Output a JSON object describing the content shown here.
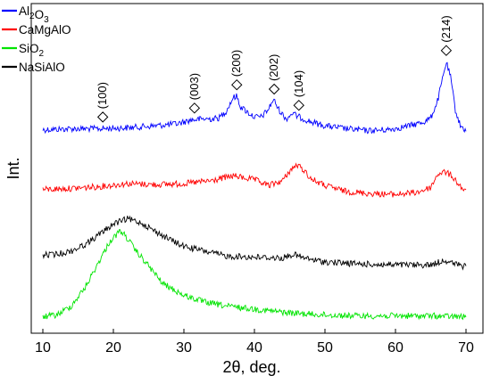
{
  "chart_data": {
    "type": "line",
    "xlabel": "2θ, deg.",
    "ylabel": "Int.",
    "xlim": [
      10,
      70
    ],
    "xticks": [
      10,
      20,
      30,
      40,
      50,
      60,
      70
    ],
    "grid": false,
    "legend_position": "top-left",
    "series": [
      {
        "name": "Al2O3",
        "name_parts": [
          {
            "t": "Al",
            "sub": false
          },
          {
            "t": "2",
            "sub": true
          },
          {
            "t": "O",
            "sub": false
          },
          {
            "t": "3",
            "sub": true
          }
        ],
        "color": "#0000ff",
        "points": [
          [
            10,
            0.16
          ],
          [
            14,
            0.15
          ],
          [
            18,
            0.15
          ],
          [
            22,
            0.14
          ],
          [
            26,
            0.12
          ],
          [
            29,
            0.1
          ],
          [
            31,
            0.06
          ],
          [
            33,
            0.05
          ],
          [
            34,
            0.05
          ],
          [
            35,
            0.04
          ],
          [
            36,
            -0.03
          ],
          [
            37,
            -0.17
          ],
          [
            37.5,
            -0.18
          ],
          [
            38,
            -0.08
          ],
          [
            39,
            -0.02
          ],
          [
            40,
            0.03
          ],
          [
            41,
            0.03
          ],
          [
            42,
            -0.05
          ],
          [
            42.7,
            -0.15
          ],
          [
            43.5,
            -0.04
          ],
          [
            44.5,
            0.05
          ],
          [
            45.4,
            -0.01
          ],
          [
            46,
            0.02
          ],
          [
            47,
            0.05
          ],
          [
            48,
            0.08
          ],
          [
            50,
            0.12
          ],
          [
            53,
            0.15
          ],
          [
            56,
            0.17
          ],
          [
            59,
            0.16
          ],
          [
            62,
            0.12
          ],
          [
            64,
            0.08
          ],
          [
            65,
            0.04
          ],
          [
            66,
            -0.14
          ],
          [
            67.2,
            -0.53
          ],
          [
            67.8,
            -0.38
          ],
          [
            68.5,
            -0.04
          ],
          [
            69.2,
            0.12
          ],
          [
            70,
            0.17
          ]
        ]
      },
      {
        "name": "CaMgAlO",
        "name_parts": [
          {
            "t": "CaMgAlO",
            "sub": false
          }
        ],
        "color": "#ff0000",
        "points": [
          [
            10,
            0.77
          ],
          [
            14,
            0.76
          ],
          [
            18,
            0.74
          ],
          [
            22,
            0.71
          ],
          [
            26,
            0.72
          ],
          [
            30,
            0.71
          ],
          [
            34,
            0.68
          ],
          [
            37,
            0.63
          ],
          [
            40,
            0.67
          ],
          [
            42,
            0.73
          ],
          [
            44,
            0.68
          ],
          [
            45,
            0.58
          ],
          [
            46,
            0.52
          ],
          [
            47,
            0.57
          ],
          [
            48,
            0.66
          ],
          [
            50,
            0.73
          ],
          [
            53,
            0.79
          ],
          [
            56,
            0.81
          ],
          [
            60,
            0.82
          ],
          [
            63,
            0.8
          ],
          [
            65,
            0.75
          ],
          [
            66,
            0.61
          ],
          [
            67,
            0.59
          ],
          [
            68,
            0.63
          ],
          [
            69,
            0.72
          ],
          [
            70,
            0.8
          ]
        ]
      },
      {
        "name": "SiO2",
        "name_parts": [
          {
            "t": "SiO",
            "sub": false
          },
          {
            "t": "2",
            "sub": true
          }
        ],
        "color": "#00e400",
        "points": [
          [
            10,
            2.07
          ],
          [
            12,
            2.05
          ],
          [
            14,
            1.96
          ],
          [
            16,
            1.77
          ],
          [
            18,
            1.5
          ],
          [
            19.5,
            1.3
          ],
          [
            21,
            1.19
          ],
          [
            22,
            1.27
          ],
          [
            23,
            1.38
          ],
          [
            25,
            1.55
          ],
          [
            27,
            1.73
          ],
          [
            30,
            1.85
          ],
          [
            33,
            1.92
          ],
          [
            36,
            1.96
          ],
          [
            40,
            1.99
          ],
          [
            45,
            2.03
          ],
          [
            50,
            2.05
          ],
          [
            55,
            2.06
          ],
          [
            60,
            2.06
          ],
          [
            65,
            2.06
          ],
          [
            70,
            2.07
          ]
        ]
      },
      {
        "name": "NaSiAlO",
        "name_parts": [
          {
            "t": "NaSiAlO",
            "sub": false
          }
        ],
        "color": "#000000",
        "points": [
          [
            10,
            1.44
          ],
          [
            12,
            1.43
          ],
          [
            14,
            1.4
          ],
          [
            16,
            1.33
          ],
          [
            18,
            1.23
          ],
          [
            20,
            1.12
          ],
          [
            22,
            1.07
          ],
          [
            24,
            1.11
          ],
          [
            26,
            1.2
          ],
          [
            28,
            1.28
          ],
          [
            30,
            1.35
          ],
          [
            33,
            1.4
          ],
          [
            36,
            1.45
          ],
          [
            40,
            1.46
          ],
          [
            44,
            1.47
          ],
          [
            45.5,
            1.43
          ],
          [
            47,
            1.47
          ],
          [
            50,
            1.51
          ],
          [
            55,
            1.53
          ],
          [
            60,
            1.54
          ],
          [
            65,
            1.54
          ],
          [
            67,
            1.49
          ],
          [
            68,
            1.52
          ],
          [
            70,
            1.56
          ]
        ]
      }
    ],
    "annotations": [
      {
        "label": "(100)",
        "x": 18.5
      },
      {
        "label": "(003)",
        "x": 31.5
      },
      {
        "label": "(200)",
        "x": 37.5
      },
      {
        "label": "(202)",
        "x": 42.8
      },
      {
        "label": "(104)",
        "x": 46.3
      },
      {
        "label": "(214)",
        "x": 67.2
      }
    ]
  }
}
